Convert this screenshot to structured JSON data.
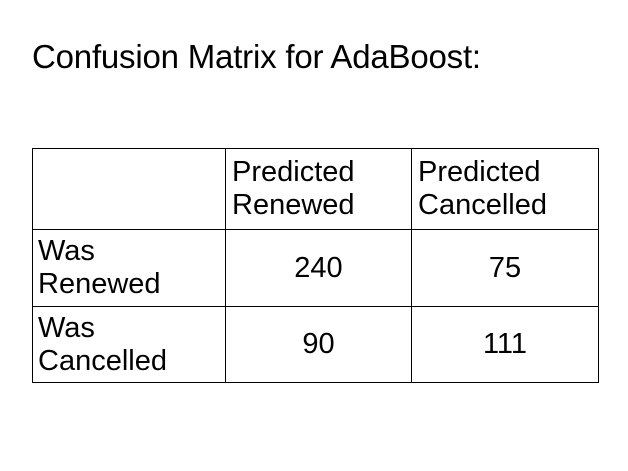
{
  "title": "Confusion Matrix for AdaBoost:",
  "matrix": {
    "columns": [
      {
        "line1": "Predicted",
        "line2": "Renewed"
      },
      {
        "line1": "Predicted",
        "line2": "Cancelled"
      }
    ],
    "rows": [
      {
        "line1": "Was",
        "line2": "Renewed",
        "values": [
          "240",
          "75"
        ]
      },
      {
        "line1": "Was",
        "line2": "Cancelled",
        "values": [
          "90",
          "111"
        ]
      }
    ]
  }
}
